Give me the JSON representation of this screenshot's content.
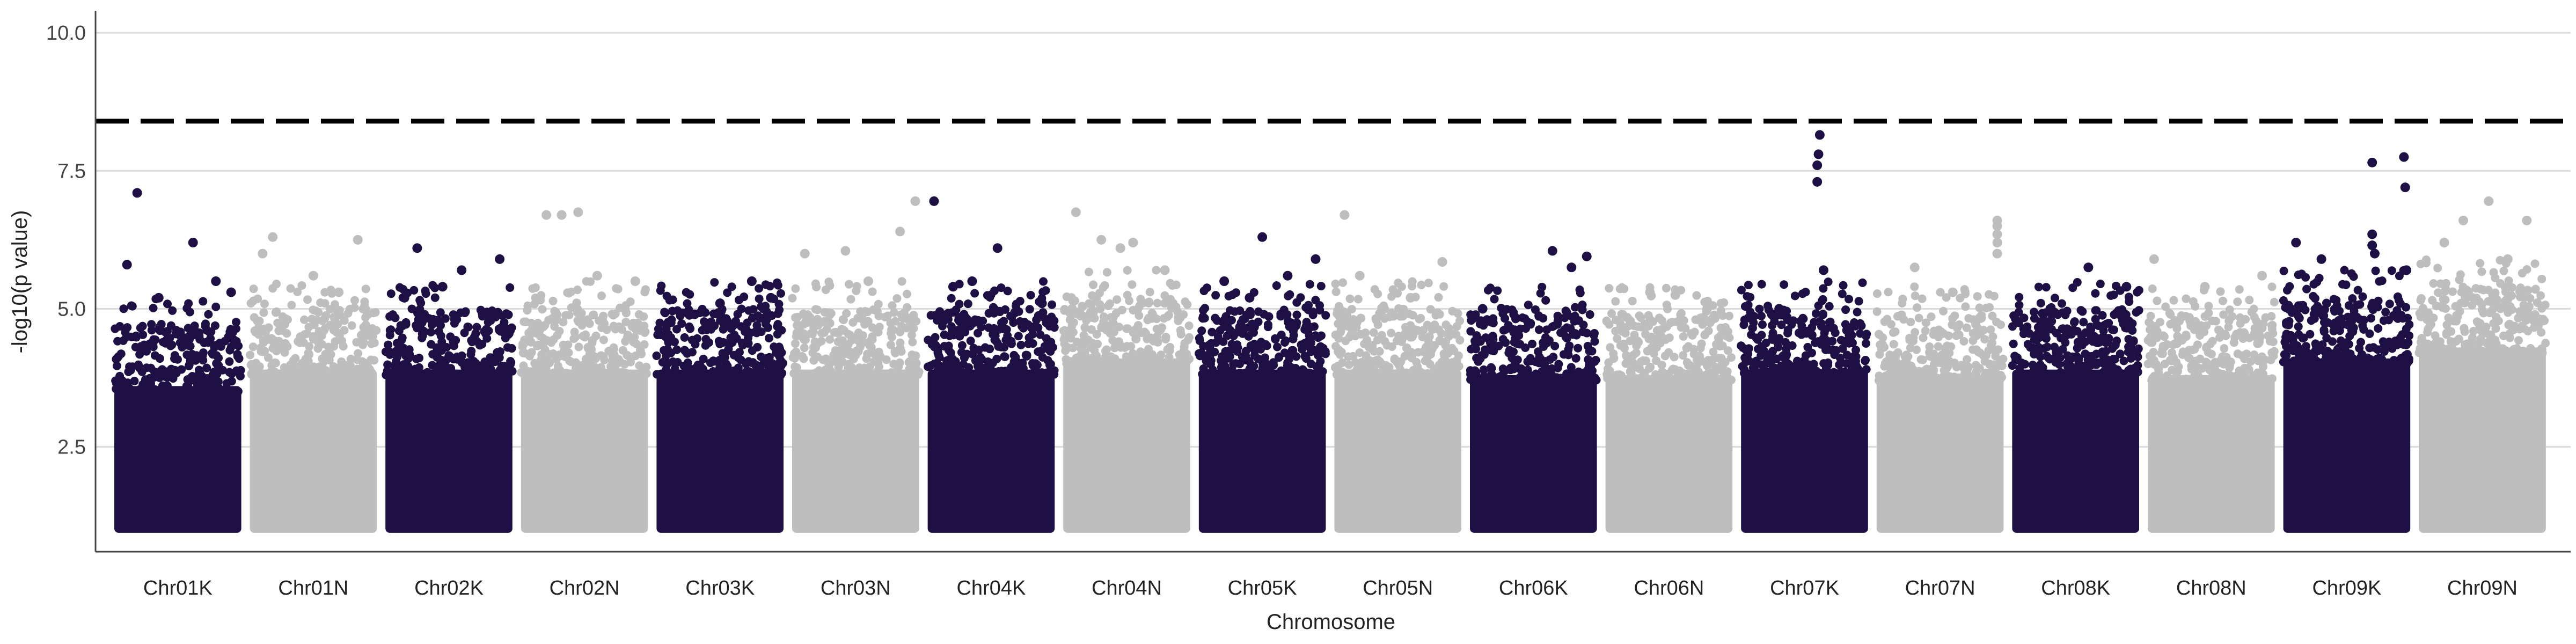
{
  "chart_data": {
    "type": "scatter",
    "subtype": "manhattan",
    "xlabel": "Chromosome",
    "ylabel": "-log10(p value)",
    "ylim": [
      0.6,
      10.4
    ],
    "yticks": [
      2.5,
      5.0,
      7.5,
      10.0
    ],
    "ytick_labels": [
      "2.5",
      "5.0",
      "7.5",
      "10.0"
    ],
    "grid": "horizontal major lines",
    "threshold": 8.4,
    "colors": {
      "dark": "#1e1045",
      "light": "#bebebe",
      "threshold": "#000000",
      "grid": "#d9d9d9",
      "axis": "#444444"
    },
    "min_value": 1.0,
    "categories": [
      "Chr01K",
      "Chr01N",
      "Chr02K",
      "Chr02N",
      "Chr03K",
      "Chr03N",
      "Chr04K",
      "Chr04N",
      "Chr05K",
      "Chr05N",
      "Chr06K",
      "Chr06N",
      "Chr07K",
      "Chr07N",
      "Chr08K",
      "Chr08N",
      "Chr09K",
      "Chr09N"
    ],
    "chromosomes": [
      {
        "name": "Chr01K",
        "color": "dark",
        "bulk_top": 4.3,
        "peaks": [
          [
            0.18,
            7.1
          ],
          [
            0.62,
            6.2
          ],
          [
            0.1,
            5.8
          ],
          [
            0.35,
            5.2
          ],
          [
            0.8,
            5.5
          ],
          [
            0.92,
            5.3
          ]
        ]
      },
      {
        "name": "Chr01N",
        "color": "light",
        "bulk_top": 4.6,
        "peaks": [
          [
            0.18,
            6.3
          ],
          [
            0.85,
            6.25
          ],
          [
            0.1,
            6.0
          ],
          [
            0.5,
            5.6
          ],
          [
            0.7,
            5.3
          ]
        ]
      },
      {
        "name": "Chr02K",
        "color": "dark",
        "bulk_top": 4.6,
        "peaks": [
          [
            0.25,
            6.1
          ],
          [
            0.9,
            5.9
          ],
          [
            0.6,
            5.7
          ],
          [
            0.15,
            5.2
          ],
          [
            0.45,
            5.4
          ]
        ]
      },
      {
        "name": "Chr02N",
        "color": "light",
        "bulk_top": 4.6,
        "peaks": [
          [
            0.2,
            6.7
          ],
          [
            0.32,
            6.7
          ],
          [
            0.45,
            6.75
          ],
          [
            0.6,
            5.6
          ],
          [
            0.9,
            5.5
          ]
        ]
      },
      {
        "name": "Chr03K",
        "color": "dark",
        "bulk_top": 4.6,
        "peaks": [
          [
            0.75,
            5.5
          ],
          [
            0.5,
            5.1
          ],
          [
            0.9,
            5.2
          ],
          [
            0.3,
            4.9
          ]
        ]
      },
      {
        "name": "Chr03N",
        "color": "light",
        "bulk_top": 4.6,
        "peaks": [
          [
            0.97,
            6.95
          ],
          [
            0.1,
            6.0
          ],
          [
            0.42,
            6.05
          ],
          [
            0.85,
            6.4
          ],
          [
            0.6,
            5.5
          ]
        ]
      },
      {
        "name": "Chr04K",
        "color": "dark",
        "bulk_top": 4.6,
        "peaks": [
          [
            0.05,
            6.95
          ],
          [
            0.55,
            6.1
          ],
          [
            0.35,
            5.5
          ],
          [
            0.9,
            5.1
          ],
          [
            0.2,
            5.4
          ]
        ]
      },
      {
        "name": "Chr04N",
        "color": "light",
        "bulk_top": 4.8,
        "peaks": [
          [
            0.1,
            6.75
          ],
          [
            0.3,
            6.25
          ],
          [
            0.45,
            6.1
          ],
          [
            0.55,
            6.2
          ],
          [
            0.8,
            5.7
          ]
        ]
      },
      {
        "name": "Chr05K",
        "color": "dark",
        "bulk_top": 4.6,
        "peaks": [
          [
            0.5,
            6.3
          ],
          [
            0.92,
            5.9
          ],
          [
            0.2,
            5.5
          ],
          [
            0.7,
            5.6
          ],
          [
            0.4,
            5.2
          ]
        ]
      },
      {
        "name": "Chr05N",
        "color": "light",
        "bulk_top": 4.6,
        "peaks": [
          [
            0.08,
            6.7
          ],
          [
            0.85,
            5.85
          ],
          [
            0.2,
            5.6
          ],
          [
            0.6,
            5.2
          ]
        ]
      },
      {
        "name": "Chr06K",
        "color": "dark",
        "bulk_top": 4.5,
        "peaks": [
          [
            0.65,
            6.05
          ],
          [
            0.92,
            5.95
          ],
          [
            0.8,
            5.75
          ],
          [
            0.1,
            5.0
          ]
        ]
      },
      {
        "name": "Chr06N",
        "color": "light",
        "bulk_top": 4.5,
        "peaks": [
          [
            0.35,
            5.3
          ],
          [
            0.55,
            5.25
          ],
          [
            0.8,
            5.0
          ]
        ]
      },
      {
        "name": "Chr07K",
        "color": "dark",
        "bulk_top": 4.6,
        "peaks": [
          [
            0.62,
            8.15
          ],
          [
            0.61,
            7.8
          ],
          [
            0.6,
            7.6
          ],
          [
            0.6,
            7.3
          ],
          [
            0.65,
            5.7
          ],
          [
            0.3,
            5.0
          ]
        ]
      },
      {
        "name": "Chr07N",
        "color": "light",
        "bulk_top": 4.5,
        "peaks": [
          [
            0.95,
            6.6
          ],
          [
            0.95,
            6.5
          ],
          [
            0.95,
            6.35
          ],
          [
            0.95,
            6.2
          ],
          [
            0.95,
            6.0
          ],
          [
            0.3,
            5.75
          ],
          [
            0.6,
            5.3
          ]
        ]
      },
      {
        "name": "Chr08K",
        "color": "dark",
        "bulk_top": 4.6,
        "peaks": [
          [
            0.6,
            5.75
          ],
          [
            0.3,
            5.0
          ],
          [
            0.9,
            5.4
          ]
        ]
      },
      {
        "name": "Chr08N",
        "color": "light",
        "bulk_top": 4.5,
        "peaks": [
          [
            0.05,
            5.9
          ],
          [
            0.45,
            5.4
          ],
          [
            0.9,
            5.6
          ]
        ]
      },
      {
        "name": "Chr09K",
        "color": "dark",
        "bulk_top": 4.8,
        "peaks": [
          [
            0.7,
            7.65
          ],
          [
            0.7,
            6.35
          ],
          [
            0.7,
            6.15
          ],
          [
            0.72,
            6.0
          ],
          [
            0.1,
            6.2
          ],
          [
            0.3,
            5.9
          ],
          [
            0.95,
            7.75
          ],
          [
            0.96,
            7.2
          ],
          [
            0.97,
            5.7
          ]
        ]
      },
      {
        "name": "Chr09N",
        "color": "light",
        "bulk_top": 5.0,
        "peaks": [
          [
            0.55,
            6.95
          ],
          [
            0.35,
            6.6
          ],
          [
            0.85,
            6.6
          ],
          [
            0.2,
            6.2
          ],
          [
            0.7,
            5.9
          ]
        ]
      }
    ]
  }
}
